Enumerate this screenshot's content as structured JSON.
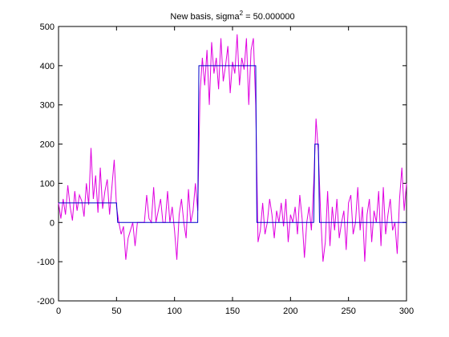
{
  "chart_data": {
    "type": "line",
    "title": [
      "New basis, sigma",
      "2",
      " = 50.000000"
    ],
    "xlim": [
      0,
      300
    ],
    "xticks": [
      0,
      50,
      100,
      150,
      200,
      250,
      300
    ],
    "ylim": [
      -200,
      500
    ],
    "yticks": [
      -200,
      -100,
      0,
      100,
      200,
      300,
      400,
      500
    ],
    "series": [
      {
        "color": "#e000e0",
        "x": [
          0,
          2,
          4,
          6,
          8,
          10,
          12,
          14,
          16,
          18,
          20,
          22,
          24,
          26,
          28,
          30,
          32,
          34,
          36,
          38,
          40,
          42,
          44,
          46,
          48,
          50,
          52,
          54,
          56,
          58,
          60,
          62,
          64,
          66,
          68,
          70,
          72,
          74,
          76,
          78,
          80,
          82,
          84,
          86,
          88,
          90,
          92,
          94,
          96,
          98,
          100,
          102,
          104,
          106,
          108,
          110,
          112,
          114,
          116,
          118,
          120,
          122,
          124,
          126,
          128,
          130,
          132,
          134,
          136,
          138,
          140,
          142,
          144,
          146,
          148,
          150,
          152,
          154,
          156,
          158,
          160,
          162,
          164,
          166,
          168,
          170,
          172,
          174,
          176,
          178,
          180,
          182,
          184,
          186,
          188,
          190,
          192,
          194,
          196,
          198,
          200,
          202,
          204,
          206,
          208,
          210,
          212,
          214,
          216,
          218,
          220,
          222,
          224,
          226,
          228,
          230,
          232,
          234,
          236,
          238,
          240,
          242,
          244,
          246,
          248,
          250,
          252,
          254,
          256,
          258,
          260,
          262,
          264,
          266,
          268,
          270,
          272,
          274,
          276,
          278,
          280,
          282,
          284,
          286,
          288,
          290,
          292,
          294,
          296,
          298,
          300
        ],
        "values": [
          50,
          10,
          60,
          20,
          95,
          40,
          5,
          80,
          30,
          70,
          55,
          15,
          100,
          45,
          190,
          60,
          120,
          25,
          140,
          35,
          80,
          110,
          20,
          90,
          160,
          40,
          0,
          -30,
          -10,
          -95,
          -40,
          -20,
          0,
          -60,
          0,
          0,
          0,
          0,
          70,
          10,
          0,
          90,
          0,
          30,
          60,
          0,
          0,
          80,
          0,
          40,
          -20,
          -95,
          20,
          60,
          0,
          -40,
          85,
          0,
          30,
          100,
          30,
          330,
          420,
          350,
          440,
          300,
          460,
          380,
          420,
          340,
          470,
          360,
          400,
          450,
          330,
          410,
          380,
          480,
          350,
          420,
          390,
          470,
          300,
          440,
          470,
          300,
          -50,
          -20,
          50,
          -30,
          0,
          60,
          20,
          -40,
          30,
          0,
          50,
          -10,
          60,
          -50,
          20,
          0,
          40,
          -30,
          70,
          10,
          -90,
          0,
          40,
          -20,
          100,
          265,
          180,
          20,
          -100,
          -50,
          80,
          -60,
          40,
          -20,
          60,
          -40,
          0,
          30,
          -70,
          50,
          70,
          -30,
          0,
          90,
          -20,
          40,
          -100,
          20,
          60,
          -50,
          30,
          0,
          80,
          -60,
          90,
          -30,
          20,
          60,
          -20,
          0,
          -80,
          60,
          140,
          30,
          100
        ]
      },
      {
        "color": "#0000cc",
        "x": [
          0,
          50,
          51,
          120,
          121,
          170,
          171,
          220,
          221,
          224,
          225,
          300
        ],
        "values": [
          50,
          50,
          0,
          0,
          400,
          400,
          0,
          0,
          200,
          200,
          0,
          0
        ]
      }
    ]
  }
}
